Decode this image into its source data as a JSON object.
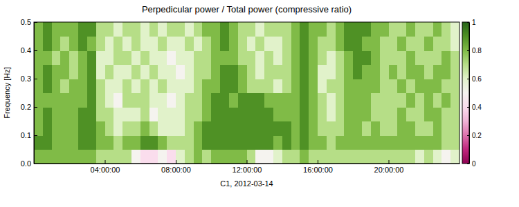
{
  "chart_data": {
    "type": "heatmap",
    "title": "Perpedicular power / Total power (compressive ratio)",
    "x_label": "C1, 2012-03-14",
    "y_label": "Frequency [Hz]",
    "x": [
      0.25,
      0.75,
      1.25,
      1.75,
      2.25,
      2.75,
      3.25,
      3.75,
      4.25,
      4.75,
      5.25,
      5.75,
      6.25,
      6.75,
      7.25,
      7.75,
      8.25,
      8.75,
      9.25,
      9.75,
      10.25,
      10.75,
      11.25,
      11.75,
      12.25,
      12.75,
      13.25,
      13.75,
      14.25,
      14.75,
      15.25,
      15.75,
      16.25,
      16.75,
      17.25,
      17.75,
      18.25,
      18.75,
      19.25,
      19.75,
      20.25,
      20.75,
      21.25,
      21.75,
      22.25,
      22.75,
      23.25,
      23.75
    ],
    "y": [
      0.025,
      0.075,
      0.125,
      0.175,
      0.225,
      0.275,
      0.325,
      0.375,
      0.425,
      0.475
    ],
    "z": [
      [
        0.8,
        0.8,
        0.8,
        0.8,
        0.8,
        0.8,
        0.8,
        0.7,
        0.7,
        0.7,
        0.7,
        0.5,
        0.4,
        0.4,
        0.5,
        0.4,
        0.6,
        0.7,
        0.8,
        0.7,
        0.8,
        0.8,
        0.8,
        0.8,
        0.7,
        0.5,
        0.5,
        0.6,
        0.7,
        0.7,
        0.8,
        0.7,
        0.7,
        0.7,
        0.7,
        0.7,
        0.7,
        0.7,
        0.7,
        0.7,
        0.7,
        0.7,
        0.7,
        0.6,
        0.7,
        0.6,
        0.5,
        0.6
      ],
      [
        0.9,
        0.9,
        0.8,
        0.8,
        0.8,
        0.9,
        0.9,
        0.8,
        0.8,
        0.7,
        0.8,
        0.8,
        0.9,
        0.9,
        0.8,
        0.7,
        0.7,
        0.7,
        0.8,
        0.9,
        0.9,
        0.9,
        0.9,
        0.9,
        0.9,
        0.9,
        0.9,
        0.8,
        0.9,
        0.8,
        0.9,
        0.8,
        0.8,
        0.7,
        0.8,
        0.8,
        0.8,
        0.8,
        0.8,
        0.8,
        0.8,
        0.8,
        0.8,
        0.8,
        0.8,
        0.8,
        0.7,
        0.7
      ],
      [
        0.8,
        0.9,
        0.8,
        0.8,
        0.8,
        0.9,
        0.9,
        0.8,
        0.7,
        0.6,
        0.7,
        0.7,
        0.8,
        0.7,
        0.6,
        0.6,
        0.6,
        0.7,
        0.8,
        0.9,
        0.9,
        0.9,
        0.9,
        0.9,
        0.9,
        0.9,
        0.9,
        0.9,
        0.9,
        0.8,
        0.9,
        0.8,
        0.7,
        0.7,
        0.7,
        0.8,
        0.8,
        0.7,
        0.8,
        0.7,
        0.7,
        0.8,
        0.8,
        0.7,
        0.7,
        0.8,
        0.7,
        0.7
      ],
      [
        0.8,
        0.9,
        0.8,
        0.8,
        0.8,
        0.9,
        0.9,
        0.7,
        0.7,
        0.6,
        0.6,
        0.6,
        0.7,
        0.5,
        0.6,
        0.6,
        0.6,
        0.7,
        0.7,
        0.8,
        0.9,
        0.9,
        0.9,
        0.9,
        0.9,
        0.9,
        0.9,
        0.8,
        0.8,
        0.8,
        0.9,
        0.8,
        0.7,
        0.6,
        0.7,
        0.8,
        0.8,
        0.8,
        0.7,
        0.7,
        0.7,
        0.8,
        0.7,
        0.7,
        0.8,
        0.8,
        0.7,
        0.7
      ],
      [
        0.8,
        0.8,
        0.8,
        0.8,
        0.8,
        0.8,
        0.9,
        0.7,
        0.6,
        0.5,
        0.7,
        0.7,
        0.7,
        0.6,
        0.6,
        0.5,
        0.6,
        0.7,
        0.7,
        0.8,
        0.9,
        0.9,
        0.8,
        0.9,
        0.9,
        0.9,
        0.8,
        0.8,
        0.8,
        0.8,
        0.9,
        0.8,
        0.7,
        0.6,
        0.7,
        0.8,
        0.8,
        0.8,
        0.7,
        0.7,
        0.7,
        0.7,
        0.8,
        0.7,
        0.8,
        0.7,
        0.8,
        0.7
      ],
      [
        0.8,
        0.9,
        0.8,
        0.7,
        0.8,
        0.8,
        0.9,
        0.7,
        0.6,
        0.6,
        0.7,
        0.6,
        0.7,
        0.6,
        0.7,
        0.6,
        0.6,
        0.6,
        0.7,
        0.8,
        0.8,
        0.9,
        0.9,
        0.8,
        0.7,
        0.7,
        0.7,
        0.6,
        0.7,
        0.8,
        0.9,
        0.8,
        0.6,
        0.7,
        0.7,
        0.8,
        0.8,
        0.8,
        0.8,
        0.7,
        0.7,
        0.8,
        0.7,
        0.8,
        0.8,
        0.8,
        0.7,
        0.7
      ],
      [
        0.8,
        0.9,
        0.8,
        0.8,
        0.7,
        0.8,
        0.9,
        0.6,
        0.7,
        0.6,
        0.6,
        0.7,
        0.6,
        0.7,
        0.6,
        0.6,
        0.5,
        0.6,
        0.7,
        0.7,
        0.8,
        0.9,
        0.9,
        0.8,
        0.7,
        0.6,
        0.7,
        0.7,
        0.7,
        0.8,
        0.9,
        0.8,
        0.6,
        0.6,
        0.7,
        0.8,
        0.9,
        0.8,
        0.8,
        0.7,
        0.8,
        0.7,
        0.8,
        0.8,
        0.7,
        0.8,
        0.8,
        0.7
      ],
      [
        0.8,
        0.8,
        0.7,
        0.8,
        0.7,
        0.8,
        0.9,
        0.6,
        0.6,
        0.7,
        0.7,
        0.6,
        0.7,
        0.6,
        0.6,
        0.5,
        0.6,
        0.6,
        0.7,
        0.7,
        0.8,
        0.8,
        0.8,
        0.7,
        0.7,
        0.6,
        0.7,
        0.6,
        0.7,
        0.8,
        0.9,
        0.8,
        0.7,
        0.6,
        0.7,
        0.8,
        0.9,
        0.9,
        0.8,
        0.7,
        0.7,
        0.7,
        0.8,
        0.7,
        0.7,
        0.7,
        0.8,
        0.7
      ],
      [
        0.8,
        0.9,
        0.8,
        0.7,
        0.8,
        0.9,
        0.8,
        0.7,
        0.6,
        0.7,
        0.6,
        0.7,
        0.6,
        0.6,
        0.7,
        0.6,
        0.6,
        0.7,
        0.6,
        0.7,
        0.8,
        0.9,
        0.8,
        0.7,
        0.6,
        0.7,
        0.6,
        0.6,
        0.7,
        0.8,
        0.9,
        0.8,
        0.7,
        0.7,
        0.8,
        0.9,
        0.9,
        0.8,
        0.8,
        0.7,
        0.7,
        0.8,
        0.7,
        0.7,
        0.8,
        0.7,
        0.7,
        0.6
      ],
      [
        0.8,
        0.9,
        0.8,
        0.8,
        0.8,
        0.9,
        0.9,
        0.7,
        0.7,
        0.6,
        0.7,
        0.7,
        0.6,
        0.7,
        0.6,
        0.7,
        0.7,
        0.6,
        0.7,
        0.8,
        0.8,
        0.9,
        0.8,
        0.7,
        0.7,
        0.6,
        0.7,
        0.7,
        0.7,
        0.8,
        0.9,
        0.8,
        0.8,
        0.7,
        0.8,
        0.9,
        0.9,
        0.9,
        0.8,
        0.8,
        0.7,
        0.7,
        0.8,
        0.7,
        0.7,
        0.8,
        0.7,
        0.6
      ]
    ],
    "xlim": [
      0,
      24
    ],
    "xticks": [
      {
        "value": 4,
        "label": "04:00:00"
      },
      {
        "value": 8,
        "label": "08:00:00"
      },
      {
        "value": 12,
        "label": "12:00:00"
      },
      {
        "value": 16,
        "label": "16:00:00"
      },
      {
        "value": 20,
        "label": "20:00:00"
      }
    ],
    "ylim": [
      0,
      0.5
    ],
    "yticks": [
      {
        "value": 0,
        "label": "0.0"
      },
      {
        "value": 0.1,
        "label": "0.1"
      },
      {
        "value": 0.2,
        "label": "0.2"
      },
      {
        "value": 0.3,
        "label": "0.3"
      },
      {
        "value": 0.4,
        "label": "0.4"
      },
      {
        "value": 0.5,
        "label": "0.5"
      }
    ],
    "colorbar": {
      "range": [
        0,
        1
      ],
      "ticks": [
        0,
        0.2,
        0.4,
        0.6,
        0.8,
        1
      ]
    }
  }
}
